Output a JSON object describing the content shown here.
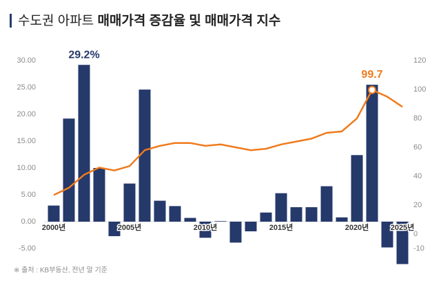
{
  "chart_data": {
    "type": "bar",
    "title": "수도권 아파트",
    "title_bold": "매매가격 증감율 및 매매가격 지수",
    "source": "※ 출처 : KB부동산, 전년 말 기준",
    "categories": [
      "2000년",
      null,
      null,
      null,
      null,
      "2005년",
      null,
      null,
      null,
      null,
      "2010년",
      null,
      null,
      null,
      null,
      "2015년",
      null,
      null,
      null,
      null,
      "2020년",
      null,
      null,
      "2025년"
    ],
    "series": [
      {
        "color": "#25396b",
        "values": [
          3.0,
          19.2,
          29.2,
          10.0,
          -2.7,
          7.1,
          24.6,
          3.9,
          2.9,
          0.7,
          -3.0,
          0.1,
          -3.9,
          -1.8,
          1.7,
          5.3,
          2.7,
          2.7,
          6.6,
          0.8,
          12.4,
          25.5,
          -4.8,
          -7.9
        ],
        "value_labels": [
          null,
          null,
          "29.2%",
          null,
          null,
          null,
          null,
          null,
          null,
          null,
          null,
          null,
          null,
          null,
          null,
          null,
          null,
          null,
          null,
          null,
          null,
          null,
          null,
          null
        ]
      },
      {
        "type": "line",
        "axis": "y2",
        "color": "#f07a1c",
        "values": [
          27,
          32,
          41,
          46,
          44,
          47,
          58,
          61,
          63,
          63,
          61,
          62,
          60,
          58,
          59,
          62,
          64,
          66,
          70,
          71,
          80,
          99.7,
          95,
          88
        ],
        "value_labels": [
          null,
          null,
          null,
          null,
          null,
          null,
          null,
          null,
          null,
          null,
          null,
          null,
          null,
          null,
          null,
          null,
          null,
          null,
          null,
          null,
          null,
          "99.7",
          null,
          null
        ]
      }
    ],
    "ylim": [
      -5,
      30
    ],
    "yticks": [
      {
        "value": 30,
        "label": "30.00"
      },
      {
        "value": 25,
        "label": "25.00"
      },
      {
        "value": 20,
        "label": "20.00"
      },
      {
        "value": 15,
        "label": "15.00"
      },
      {
        "value": 10,
        "label": "10.00"
      },
      {
        "value": 5,
        "label": "5.00"
      },
      {
        "value": 0,
        "label": "0.00"
      },
      {
        "value": -5,
        "label": "-5.00"
      }
    ],
    "y2lim": [
      -10,
      120
    ],
    "y2ticks": [
      120,
      100,
      80,
      60,
      40,
      20,
      0,
      -10
    ]
  }
}
